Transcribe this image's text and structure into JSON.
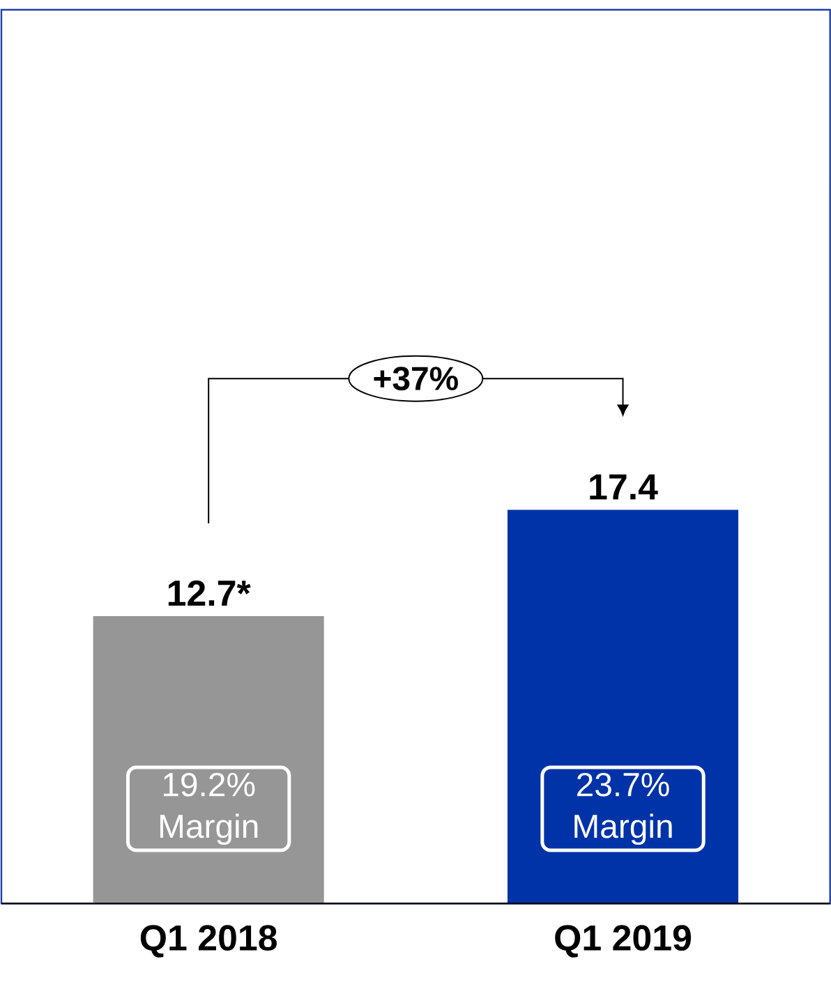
{
  "chart_data": {
    "type": "bar",
    "categories": [
      "Q1 2018",
      "Q1 2019"
    ],
    "values": [
      12.7,
      17.4
    ],
    "colors": [
      "#969696",
      "#0033a8"
    ],
    "value_labels": [
      "12.7*",
      "17.4"
    ],
    "ylim": [
      0,
      39.5
    ],
    "annotations": [
      "19.2% Margin",
      "23.7% Margin",
      "+37%"
    ]
  }
}
